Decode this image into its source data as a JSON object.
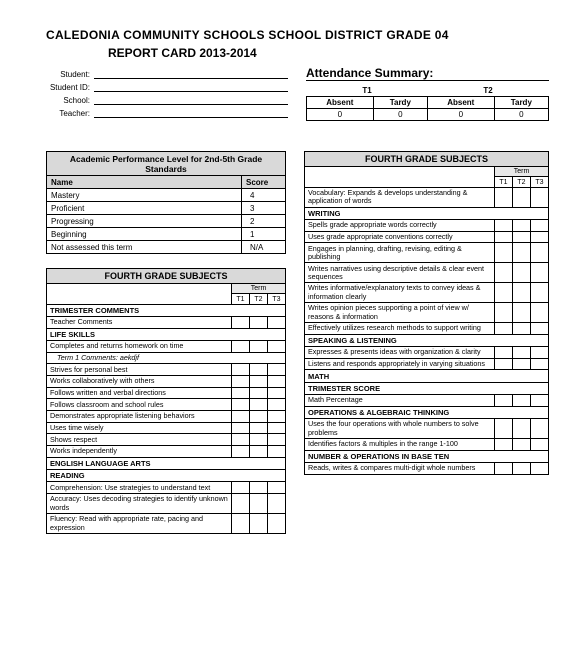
{
  "header": {
    "line1": "CALEDONIA COMMUNITY SCHOOLS SCHOOL DISTRICT GRADE 04",
    "line2": "REPORT CARD 2013-2014"
  },
  "student_fields": {
    "student": "Student:",
    "student_id": "Student ID:",
    "school": "School:",
    "teacher": "Teacher:"
  },
  "attendance": {
    "title": "Attendance Summary:",
    "t1": "T1",
    "t2": "T2",
    "absent": "Absent",
    "tardy": "Tardy",
    "zero": "0"
  },
  "perf": {
    "header": "Academic Performance Level for 2nd-5th Grade Standards",
    "name_h": "Name",
    "score_h": "Score",
    "rows": [
      {
        "n": "Mastery",
        "s": "4"
      },
      {
        "n": "Proficient",
        "s": "3"
      },
      {
        "n": "Progressing",
        "s": "2"
      },
      {
        "n": "Beginning",
        "s": "1"
      },
      {
        "n": "Not assessed this term",
        "s": "N/A"
      }
    ]
  },
  "subj_banner": "FOURTH GRADE SUBJECTS",
  "term_label": "Term",
  "t1": "T1",
  "t2": "T2",
  "t3": "T3",
  "left_rows": [
    {
      "t": "sect",
      "v": "TRIMESTER COMMENTS"
    },
    {
      "t": "row",
      "v": "Teacher Comments"
    },
    {
      "t": "sect",
      "v": "LIFE SKILLS"
    },
    {
      "t": "row",
      "v": "Completes and returns homework on time"
    },
    {
      "t": "indent",
      "v": "Term 1 Comments: aekdjf"
    },
    {
      "t": "row",
      "v": "Strives for personal best"
    },
    {
      "t": "row",
      "v": "Works collaboratively with others"
    },
    {
      "t": "row",
      "v": "Follows written and verbal directions"
    },
    {
      "t": "row",
      "v": "Follows classroom and school rules"
    },
    {
      "t": "row",
      "v": "Demonstrates appropriate listening behaviors"
    },
    {
      "t": "row",
      "v": "Uses time wisely"
    },
    {
      "t": "row",
      "v": "Shows respect"
    },
    {
      "t": "row",
      "v": "Works independently"
    },
    {
      "t": "sect",
      "v": "ENGLISH LANGUAGE ARTS"
    },
    {
      "t": "sect",
      "v": "READING"
    },
    {
      "t": "row",
      "v": "Comprehension: Use strategies to understand text"
    },
    {
      "t": "row",
      "v": "Accuracy: Uses decoding strategies to identify unknown words"
    },
    {
      "t": "row",
      "v": "Fluency: Read with appropriate rate, pacing and expression"
    }
  ],
  "right_rows": [
    {
      "t": "row",
      "v": "Vocabulary: Expands & develops understanding & application of words"
    },
    {
      "t": "sect",
      "v": "WRITING"
    },
    {
      "t": "row",
      "v": "Spells grade appropriate words correctly"
    },
    {
      "t": "row",
      "v": "Uses grade appropriate conventions correctly"
    },
    {
      "t": "row",
      "v": "Engages in planning, drafting, revising, editing & publishing"
    },
    {
      "t": "row",
      "v": "Writes narratives using descriptive details & clear event sequences"
    },
    {
      "t": "row",
      "v": "Writes informative/explanatory texts to convey ideas & information clearly"
    },
    {
      "t": "row",
      "v": "Writes opinion pieces supporting a point of view w/ reasons & information"
    },
    {
      "t": "row",
      "v": "Effectively utilizes research methods to support writing"
    },
    {
      "t": "sect",
      "v": "SPEAKING & LISTENING"
    },
    {
      "t": "row",
      "v": "Expresses & presents ideas with organization & clarity"
    },
    {
      "t": "row",
      "v": "Listens and responds appropriately in varying situations"
    },
    {
      "t": "sect",
      "v": "MATH"
    },
    {
      "t": "sect",
      "v": "TRIMESTER SCORE"
    },
    {
      "t": "row",
      "v": "Math Percentage"
    },
    {
      "t": "sect",
      "v": "OPERATIONS & ALGEBRAIC THINKING"
    },
    {
      "t": "row",
      "v": "Uses the four operations with whole numbers to solve problems"
    },
    {
      "t": "row",
      "v": "Identifies factors & multiples in the range 1-100"
    },
    {
      "t": "sect",
      "v": "NUMBER & OPERATIONS IN BASE TEN"
    },
    {
      "t": "row",
      "v": "Reads, writes & compares multi-digit whole numbers"
    }
  ]
}
